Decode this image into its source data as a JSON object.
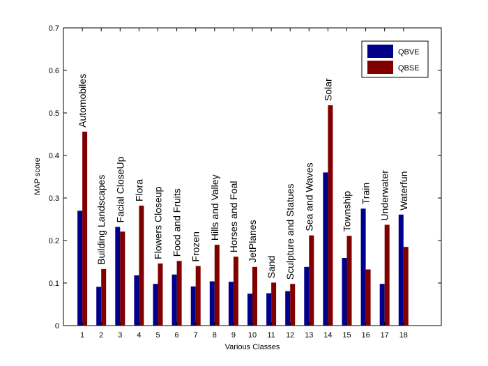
{
  "chart_data": {
    "type": "bar",
    "categories": [
      "1",
      "2",
      "3",
      "4",
      "5",
      "6",
      "7",
      "8",
      "9",
      "10",
      "11",
      "12",
      "13",
      "14",
      "15",
      "16",
      "17",
      "18"
    ],
    "category_names": [
      "Automobiles",
      "Building Landscapes",
      "Facial CloseUp",
      "Flora",
      "Flowers Closeup",
      "Food and Fruits",
      "Frozen",
      "Hills and Valley",
      "Horses and Foal",
      "JetPlanes",
      "Sand",
      "Sculpture and Statues",
      "Sea and Waves",
      "Solar",
      "Township",
      "Train",
      "Underwater",
      "Waterfun"
    ],
    "series": [
      {
        "name": "QBVE",
        "color": "#00008b",
        "values": [
          0.27,
          0.091,
          0.232,
          0.118,
          0.098,
          0.12,
          0.092,
          0.104,
          0.103,
          0.075,
          0.076,
          0.081,
          0.138,
          0.36,
          0.159,
          0.275,
          0.098,
          0.261
        ]
      },
      {
        "name": "QBSE",
        "color": "#800000",
        "values": [
          0.456,
          0.133,
          0.221,
          0.282,
          0.146,
          0.152,
          0.14,
          0.19,
          0.162,
          0.138,
          0.101,
          0.098,
          0.212,
          0.518,
          0.211,
          0.132,
          0.237,
          0.185
        ]
      }
    ],
    "xlabel": "Various Classes",
    "ylabel": "MAP score",
    "ylim": [
      0,
      0.7
    ],
    "yticks": [
      "0",
      "0.1",
      "0.2",
      "0.3",
      "0.4",
      "0.5",
      "0.6",
      "0.7"
    ],
    "grid": false,
    "legend_position": "top-right"
  }
}
